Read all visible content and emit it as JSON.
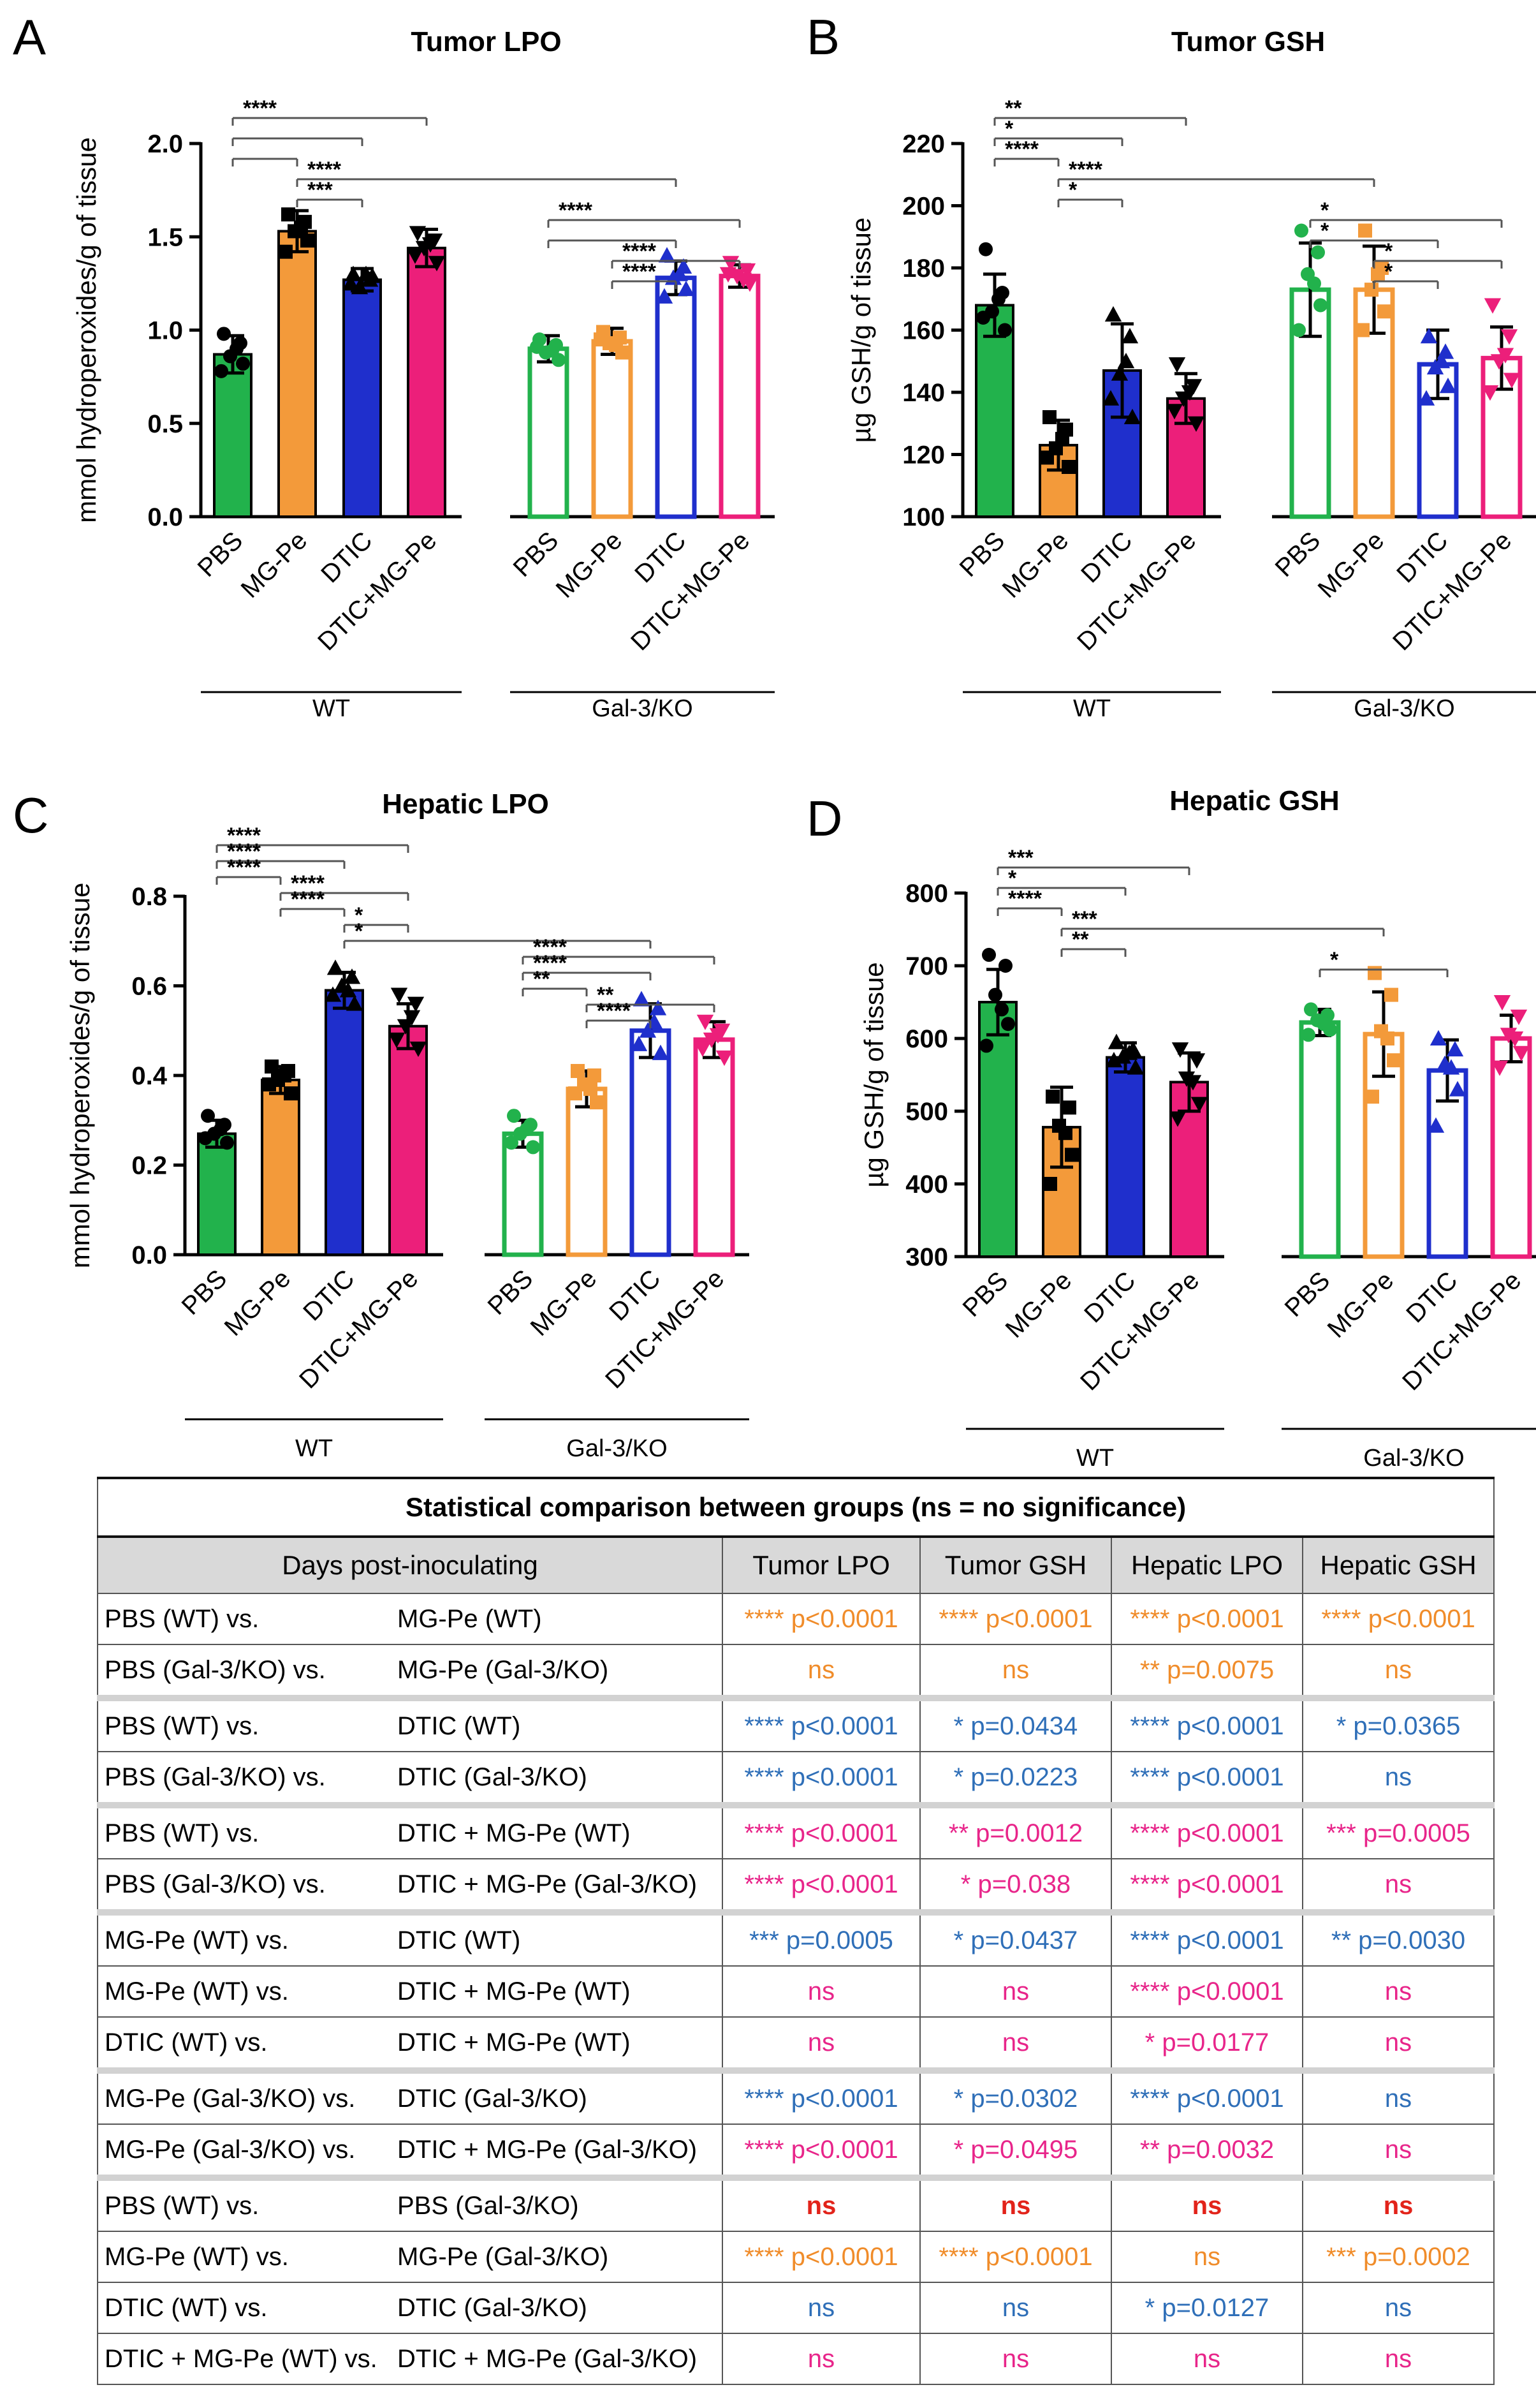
{
  "chart_data": [
    {
      "panel": "A",
      "type": "bar",
      "title": "Tumor LPO",
      "ylabel": "mmol hydroperoxides/g of tissue",
      "ylim": [
        0,
        2.0
      ],
      "yticks": [
        "0.0",
        "0.5",
        "1.0",
        "1.5",
        "2.0"
      ],
      "categories": [
        "PBS",
        "MG-Pe",
        "DTIC",
        "DTIC+MG-Pe"
      ],
      "groups": [
        "WT",
        "Gal-3/KO"
      ],
      "series": [
        {
          "name": "WT",
          "values": [
            0.87,
            1.53,
            1.27,
            1.44
          ],
          "errors": [
            0.1,
            0.11,
            0.06,
            0.1
          ]
        },
        {
          "name": "Gal-3/KO",
          "values": [
            0.9,
            0.94,
            1.28,
            1.29
          ],
          "errors": [
            0.07,
            0.07,
            0.09,
            0.06
          ]
        }
      ],
      "points": [
        [
          [
            0.98,
            0.93,
            0.86,
            0.82,
            0.78,
            0.9
          ],
          [
            1.62,
            1.58,
            1.53,
            1.48,
            1.42,
            1.55
          ],
          [
            1.3,
            1.27,
            1.23,
            1.29,
            1.25,
            1.3
          ],
          [
            1.52,
            1.48,
            1.44,
            1.36,
            1.4,
            1.46
          ]
        ],
        [
          [
            0.95,
            0.92,
            0.88,
            0.84,
            0.91,
            0.89
          ],
          [
            0.99,
            0.96,
            0.93,
            0.88,
            0.95,
            0.92
          ],
          [
            1.4,
            1.34,
            1.28,
            1.22,
            1.18,
            1.3
          ],
          [
            1.36,
            1.32,
            1.29,
            1.25,
            1.3,
            1.27
          ]
        ]
      ],
      "significance": [
        {
          "from": 0,
          "to": 3,
          "label": "****"
        },
        {
          "from": 0,
          "to": 2,
          "label": ""
        },
        {
          "from": 0,
          "to": 1,
          "label": ""
        },
        {
          "from": 1,
          "to": 6,
          "label": "****"
        },
        {
          "from": 1,
          "to": 2,
          "label": "***"
        },
        {
          "from": 4,
          "to": 7,
          "label": "****"
        },
        {
          "from": 4,
          "to": 6,
          "label": ""
        },
        {
          "from": 5,
          "to": 7,
          "label": "****"
        },
        {
          "from": 5,
          "to": 6,
          "label": "****"
        }
      ]
    },
    {
      "panel": "B",
      "type": "bar",
      "title": "Tumor GSH",
      "ylabel": "µg GSH/g of tissue",
      "ylim": [
        100,
        220
      ],
      "yticks": [
        "100",
        "120",
        "140",
        "160",
        "180",
        "200",
        "220"
      ],
      "categories": [
        "PBS",
        "MG-Pe",
        "DTIC",
        "DTIC+MG-Pe"
      ],
      "groups": [
        "WT",
        "Gal-3/KO"
      ],
      "series": [
        {
          "name": "WT",
          "values": [
            168,
            123,
            147,
            138
          ],
          "errors": [
            10,
            8,
            15,
            8
          ]
        },
        {
          "name": "Gal-3/KO",
          "values": [
            173,
            173,
            149,
            151
          ],
          "errors": [
            15,
            14,
            11,
            10
          ]
        }
      ],
      "points": [
        [
          [
            186,
            172,
            166,
            160,
            164,
            170
          ],
          [
            132,
            128,
            122,
            116,
            119,
            125
          ],
          [
            165,
            158,
            146,
            132,
            138,
            150
          ],
          [
            149,
            142,
            138,
            130,
            134,
            140
          ]
        ],
        [
          [
            192,
            185,
            178,
            168,
            160,
            175
          ],
          [
            192,
            180,
            173,
            166,
            160,
            178
          ],
          [
            158,
            153,
            148,
            142,
            138,
            150
          ],
          [
            168,
            158,
            150,
            144,
            140,
            152
          ]
        ]
      ],
      "significance": [
        {
          "from": 0,
          "to": 3,
          "label": "**"
        },
        {
          "from": 0,
          "to": 2,
          "label": "*"
        },
        {
          "from": 0,
          "to": 1,
          "label": "****"
        },
        {
          "from": 1,
          "to": 5,
          "label": "****"
        },
        {
          "from": 1,
          "to": 2,
          "label": "*"
        },
        {
          "from": 4,
          "to": 7,
          "label": "*"
        },
        {
          "from": 4,
          "to": 6,
          "label": "*"
        },
        {
          "from": 5,
          "to": 7,
          "label": "*"
        },
        {
          "from": 5,
          "to": 6,
          "label": "*"
        }
      ]
    },
    {
      "panel": "C",
      "type": "bar",
      "title": "Hepatic LPO",
      "ylabel": "mmol hydroperoxides/g of tissue",
      "ylim": [
        0,
        0.8
      ],
      "yticks": [
        "0.0",
        "0.2",
        "0.4",
        "0.6",
        "0.8"
      ],
      "categories": [
        "PBS",
        "MG-Pe",
        "DTIC",
        "DTIC+MG-Pe"
      ],
      "groups": [
        "WT",
        "Gal-3/KO"
      ],
      "series": [
        {
          "name": "WT",
          "values": [
            0.27,
            0.39,
            0.59,
            0.51
          ],
          "errors": [
            0.03,
            0.03,
            0.04,
            0.05
          ]
        },
        {
          "name": "Gal-3/KO",
          "values": [
            0.27,
            0.37,
            0.5,
            0.48
          ],
          "errors": [
            0.03,
            0.04,
            0.06,
            0.04
          ]
        }
      ],
      "points": [
        [
          [
            0.31,
            0.29,
            0.27,
            0.25,
            0.26,
            0.28
          ],
          [
            0.42,
            0.41,
            0.39,
            0.36,
            0.38,
            0.4
          ],
          [
            0.64,
            0.62,
            0.6,
            0.56,
            0.58,
            0.59
          ],
          [
            0.58,
            0.56,
            0.51,
            0.46,
            0.48,
            0.53
          ]
        ],
        [
          [
            0.31,
            0.29,
            0.27,
            0.24,
            0.25,
            0.28
          ],
          [
            0.41,
            0.4,
            0.38,
            0.34,
            0.36,
            0.37
          ],
          [
            0.57,
            0.55,
            0.5,
            0.45,
            0.47,
            0.52
          ],
          [
            0.52,
            0.5,
            0.48,
            0.44,
            0.46,
            0.49
          ]
        ]
      ],
      "significance": [
        {
          "from": 0,
          "to": 3,
          "label": "****"
        },
        {
          "from": 0,
          "to": 2,
          "label": "****"
        },
        {
          "from": 0,
          "to": 1,
          "label": "****"
        },
        {
          "from": 1,
          "to": 3,
          "label": "****"
        },
        {
          "from": 1,
          "to": 2,
          "label": "****"
        },
        {
          "from": 2,
          "to": 3,
          "label": "*"
        },
        {
          "from": 2,
          "to": 6,
          "label": "*"
        },
        {
          "from": 4,
          "to": 7,
          "label": "****"
        },
        {
          "from": 4,
          "to": 6,
          "label": "****"
        },
        {
          "from": 4,
          "to": 5,
          "label": "**"
        },
        {
          "from": 5,
          "to": 7,
          "label": "**"
        },
        {
          "from": 5,
          "to": 6,
          "label": "****"
        }
      ]
    },
    {
      "panel": "D",
      "type": "bar",
      "title": "Hepatic GSH",
      "ylabel": "µg GSH/g of tissue",
      "ylim": [
        300,
        800
      ],
      "yticks": [
        "300",
        "400",
        "500",
        "600",
        "700",
        "800"
      ],
      "categories": [
        "PBS",
        "MG-Pe",
        "DTIC",
        "DTIC+MG-Pe"
      ],
      "groups": [
        "WT",
        "Gal-3/KO"
      ],
      "series": [
        {
          "name": "WT",
          "values": [
            650,
            478,
            574,
            540
          ],
          "errors": [
            45,
            55,
            20,
            40
          ]
        },
        {
          "name": "Gal-3/KO",
          "values": [
            622,
            606,
            556,
            600
          ],
          "errors": [
            18,
            58,
            42,
            32
          ]
        }
      ],
      "points": [
        [
          [
            715,
            700,
            660,
            620,
            590,
            640
          ],
          [
            520,
            505,
            480,
            440,
            400,
            470
          ],
          [
            595,
            585,
            575,
            560,
            570,
            580
          ],
          [
            585,
            570,
            545,
            510,
            490,
            540
          ]
        ],
        [
          [
            640,
            632,
            625,
            612,
            605,
            620
          ],
          [
            690,
            660,
            610,
            570,
            520,
            600
          ],
          [
            600,
            585,
            565,
            530,
            480,
            560
          ],
          [
            650,
            630,
            605,
            580,
            560,
            600
          ]
        ]
      ],
      "significance": [
        {
          "from": 0,
          "to": 3,
          "label": "***"
        },
        {
          "from": 0,
          "to": 2,
          "label": "*"
        },
        {
          "from": 0,
          "to": 1,
          "label": "****"
        },
        {
          "from": 1,
          "to": 5,
          "label": "***"
        },
        {
          "from": 1,
          "to": 2,
          "label": "**"
        },
        {
          "from": 4,
          "to": 6,
          "label": "*"
        }
      ]
    }
  ],
  "colors": {
    "PBS": "#22b24c",
    "MG-Pe": "#f39a3a",
    "DTIC": "#1f2fcc",
    "DTIC+MG-Pe": "#ec1f7a",
    "stat_orange": "#f08c2a",
    "stat_blue": "#2f6fb8",
    "stat_pink": "#e8258a",
    "stat_red": "#e2231a"
  },
  "table": {
    "caption": "Statistical comparison between groups (ns = no significance)",
    "header": [
      "Days post-inoculating",
      "Tumor LPO",
      "Tumor GSH",
      "Hepatic LPO",
      "Hepatic GSH"
    ],
    "rows": [
      {
        "a": "PBS (WT) vs.",
        "b": "MG-Pe (WT)",
        "vals": [
          "**** p<0.0001",
          "**** p<0.0001",
          "**** p<0.0001",
          "**** p<0.0001"
        ],
        "color": "orange",
        "group_start": false
      },
      {
        "a": "PBS (Gal-3/KO) vs.",
        "b": "MG-Pe (Gal-3/KO)",
        "vals": [
          "ns",
          "ns",
          "** p=0.0075",
          "ns"
        ],
        "color": "orange",
        "group_start": false
      },
      {
        "a": "PBS (WT) vs.",
        "b": "DTIC (WT)",
        "vals": [
          "**** p<0.0001",
          "* p=0.0434",
          "**** p<0.0001",
          "* p=0.0365"
        ],
        "color": "blue",
        "group_start": true
      },
      {
        "a": "PBS (Gal-3/KO) vs.",
        "b": "DTIC (Gal-3/KO)",
        "vals": [
          "**** p<0.0001",
          "* p=0.0223",
          "**** p<0.0001",
          "ns"
        ],
        "color": "blue",
        "group_start": false
      },
      {
        "a": "PBS (WT) vs.",
        "b": "DTIC + MG-Pe (WT)",
        "vals": [
          "**** p<0.0001",
          "** p=0.0012",
          "**** p<0.0001",
          "*** p=0.0005"
        ],
        "color": "pink",
        "group_start": true
      },
      {
        "a": "PBS (Gal-3/KO) vs.",
        "b": "DTIC + MG-Pe (Gal-3/KO)",
        "vals": [
          "**** p<0.0001",
          "* p=0.038",
          "**** p<0.0001",
          "ns"
        ],
        "color": "pink",
        "group_start": false
      },
      {
        "a": "MG-Pe (WT) vs.",
        "b": "DTIC (WT)",
        "vals": [
          "*** p=0.0005",
          "* p=0.0437",
          "**** p<0.0001",
          "** p=0.0030"
        ],
        "color": "blue",
        "group_start": true
      },
      {
        "a": "MG-Pe (WT) vs.",
        "b": "DTIC + MG-Pe (WT)",
        "vals": [
          "ns",
          "ns",
          "**** p<0.0001",
          "ns"
        ],
        "color": "pink",
        "group_start": false
      },
      {
        "a": "DTIC (WT) vs.",
        "b": "DTIC + MG-Pe (WT)",
        "vals": [
          "ns",
          "ns",
          "* p=0.0177",
          "ns"
        ],
        "color": "pink",
        "group_start": false
      },
      {
        "a": "MG-Pe (Gal-3/KO) vs.",
        "b": "DTIC (Gal-3/KO)",
        "vals": [
          "**** p<0.0001",
          "* p=0.0302",
          "**** p<0.0001",
          "ns"
        ],
        "color": "blue",
        "group_start": true
      },
      {
        "a": "MG-Pe (Gal-3/KO) vs.",
        "b": "DTIC + MG-Pe (Gal-3/KO)",
        "vals": [
          "**** p<0.0001",
          "* p=0.0495",
          "** p=0.0032",
          "ns"
        ],
        "color": "pink",
        "group_start": false
      },
      {
        "a": "PBS (WT) vs.",
        "b": "PBS (Gal-3/KO)",
        "vals": [
          "ns",
          "ns",
          "ns",
          "ns"
        ],
        "color": "red",
        "group_start": true
      },
      {
        "a": "MG-Pe (WT) vs.",
        "b": "MG-Pe (Gal-3/KO)",
        "vals": [
          "**** p<0.0001",
          "**** p<0.0001",
          "ns",
          "*** p=0.0002"
        ],
        "color": "orange",
        "group_start": false
      },
      {
        "a": "DTIC (WT) vs.",
        "b": "DTIC (Gal-3/KO)",
        "vals": [
          "ns",
          "ns",
          "* p=0.0127",
          "ns"
        ],
        "color": "blue",
        "group_start": false
      },
      {
        "a": "DTIC + MG-Pe (WT) vs.",
        "b": "DTIC + MG-Pe (Gal-3/KO)",
        "vals": [
          "ns",
          "ns",
          "ns",
          "ns"
        ],
        "color": "pink",
        "group_start": false
      }
    ]
  }
}
